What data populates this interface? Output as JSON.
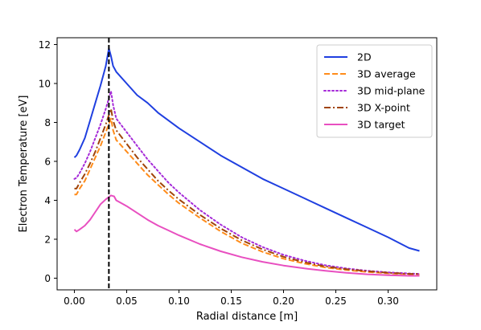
{
  "chart_data": {
    "type": "line",
    "title": "",
    "xlabel": "Radial distance [m]",
    "ylabel": "Electron Temperature [eV]",
    "xlim": [
      -0.0165,
      0.3465
    ],
    "ylim": [
      -0.6,
      12.35
    ],
    "xticks": [
      0.0,
      0.05,
      0.1,
      0.15,
      0.2,
      0.25,
      0.3
    ],
    "xtick_labels": [
      "0.00",
      "0.05",
      "0.10",
      "0.15",
      "0.20",
      "0.25",
      "0.30"
    ],
    "yticks": [
      0,
      2,
      4,
      6,
      8,
      10,
      12
    ],
    "ytick_labels": [
      "0",
      "2",
      "4",
      "6",
      "8",
      "10",
      "12"
    ],
    "grid": false,
    "legend_position": "top-right",
    "vline": {
      "x": 0.033,
      "color": "#000000",
      "style": "dashed"
    },
    "series": [
      {
        "name": "2D",
        "color": "#1f3fe0",
        "style": "solid",
        "points": [
          [
            0.0,
            6.2
          ],
          [
            0.002,
            6.3
          ],
          [
            0.005,
            6.6
          ],
          [
            0.01,
            7.2
          ],
          [
            0.015,
            8.1
          ],
          [
            0.02,
            9.0
          ],
          [
            0.025,
            9.9
          ],
          [
            0.03,
            10.9
          ],
          [
            0.033,
            11.8
          ],
          [
            0.035,
            11.4
          ],
          [
            0.037,
            10.9
          ],
          [
            0.04,
            10.6
          ],
          [
            0.05,
            10.0
          ],
          [
            0.06,
            9.4
          ],
          [
            0.07,
            9.0
          ],
          [
            0.08,
            8.5
          ],
          [
            0.09,
            8.1
          ],
          [
            0.1,
            7.7
          ],
          [
            0.12,
            7.0
          ],
          [
            0.14,
            6.3
          ],
          [
            0.16,
            5.7
          ],
          [
            0.18,
            5.1
          ],
          [
            0.2,
            4.6
          ],
          [
            0.22,
            4.1
          ],
          [
            0.24,
            3.6
          ],
          [
            0.26,
            3.1
          ],
          [
            0.28,
            2.6
          ],
          [
            0.3,
            2.1
          ],
          [
            0.32,
            1.55
          ],
          [
            0.33,
            1.4
          ]
        ]
      },
      {
        "name": "3D average",
        "color": "#ff8c1a",
        "style": "dashed",
        "points": [
          [
            0.0,
            4.3
          ],
          [
            0.002,
            4.3
          ],
          [
            0.005,
            4.6
          ],
          [
            0.01,
            5.0
          ],
          [
            0.015,
            5.6
          ],
          [
            0.02,
            6.2
          ],
          [
            0.025,
            6.8
          ],
          [
            0.03,
            7.5
          ],
          [
            0.035,
            8.2
          ],
          [
            0.037,
            7.6
          ],
          [
            0.04,
            7.1
          ],
          [
            0.05,
            6.5
          ],
          [
            0.06,
            5.9
          ],
          [
            0.07,
            5.3
          ],
          [
            0.08,
            4.8
          ],
          [
            0.09,
            4.3
          ],
          [
            0.1,
            3.85
          ],
          [
            0.12,
            3.1
          ],
          [
            0.14,
            2.4
          ],
          [
            0.16,
            1.8
          ],
          [
            0.18,
            1.35
          ],
          [
            0.2,
            1.0
          ],
          [
            0.22,
            0.75
          ],
          [
            0.24,
            0.55
          ],
          [
            0.26,
            0.42
          ],
          [
            0.28,
            0.32
          ],
          [
            0.3,
            0.25
          ],
          [
            0.32,
            0.2
          ],
          [
            0.33,
            0.2
          ]
        ]
      },
      {
        "name": "3D mid-plane",
        "color": "#a52ad8",
        "style": "dotted",
        "points": [
          [
            0.0,
            5.1
          ],
          [
            0.002,
            5.15
          ],
          [
            0.005,
            5.4
          ],
          [
            0.01,
            5.9
          ],
          [
            0.015,
            6.5
          ],
          [
            0.02,
            7.2
          ],
          [
            0.025,
            7.9
          ],
          [
            0.03,
            8.7
          ],
          [
            0.035,
            9.6
          ],
          [
            0.037,
            8.9
          ],
          [
            0.04,
            8.2
          ],
          [
            0.05,
            7.5
          ],
          [
            0.06,
            6.8
          ],
          [
            0.07,
            6.1
          ],
          [
            0.08,
            5.5
          ],
          [
            0.09,
            4.9
          ],
          [
            0.1,
            4.4
          ],
          [
            0.12,
            3.5
          ],
          [
            0.14,
            2.75
          ],
          [
            0.16,
            2.1
          ],
          [
            0.18,
            1.6
          ],
          [
            0.2,
            1.2
          ],
          [
            0.22,
            0.9
          ],
          [
            0.24,
            0.66
          ],
          [
            0.26,
            0.5
          ],
          [
            0.28,
            0.38
          ],
          [
            0.3,
            0.3
          ],
          [
            0.32,
            0.24
          ],
          [
            0.33,
            0.22
          ]
        ]
      },
      {
        "name": "3D X-point",
        "color": "#a0440a",
        "style": "dashdot",
        "points": [
          [
            0.0,
            4.6
          ],
          [
            0.002,
            4.6
          ],
          [
            0.005,
            4.9
          ],
          [
            0.01,
            5.35
          ],
          [
            0.015,
            5.9
          ],
          [
            0.02,
            6.5
          ],
          [
            0.025,
            7.2
          ],
          [
            0.03,
            7.9
          ],
          [
            0.035,
            8.7
          ],
          [
            0.037,
            8.1
          ],
          [
            0.04,
            7.6
          ],
          [
            0.05,
            6.9
          ],
          [
            0.06,
            6.2
          ],
          [
            0.07,
            5.6
          ],
          [
            0.08,
            5.0
          ],
          [
            0.09,
            4.5
          ],
          [
            0.1,
            4.05
          ],
          [
            0.12,
            3.25
          ],
          [
            0.14,
            2.55
          ],
          [
            0.16,
            1.95
          ],
          [
            0.18,
            1.48
          ],
          [
            0.2,
            1.1
          ],
          [
            0.22,
            0.82
          ],
          [
            0.24,
            0.6
          ],
          [
            0.26,
            0.46
          ],
          [
            0.28,
            0.36
          ],
          [
            0.3,
            0.28
          ],
          [
            0.32,
            0.22
          ],
          [
            0.33,
            0.22
          ]
        ]
      },
      {
        "name": "3D target",
        "color": "#e84fc0",
        "style": "solid",
        "points": [
          [
            0.0,
            2.5
          ],
          [
            0.002,
            2.4
          ],
          [
            0.005,
            2.5
          ],
          [
            0.01,
            2.7
          ],
          [
            0.015,
            3.0
          ],
          [
            0.02,
            3.4
          ],
          [
            0.025,
            3.8
          ],
          [
            0.03,
            4.05
          ],
          [
            0.035,
            4.25
          ],
          [
            0.038,
            4.2
          ],
          [
            0.04,
            4.0
          ],
          [
            0.05,
            3.7
          ],
          [
            0.06,
            3.35
          ],
          [
            0.07,
            3.0
          ],
          [
            0.08,
            2.7
          ],
          [
            0.09,
            2.45
          ],
          [
            0.1,
            2.2
          ],
          [
            0.12,
            1.75
          ],
          [
            0.14,
            1.38
          ],
          [
            0.16,
            1.08
          ],
          [
            0.18,
            0.84
          ],
          [
            0.2,
            0.65
          ],
          [
            0.22,
            0.5
          ],
          [
            0.24,
            0.38
          ],
          [
            0.26,
            0.28
          ],
          [
            0.28,
            0.2
          ],
          [
            0.3,
            0.15
          ],
          [
            0.32,
            0.12
          ],
          [
            0.33,
            0.12
          ]
        ]
      }
    ]
  }
}
